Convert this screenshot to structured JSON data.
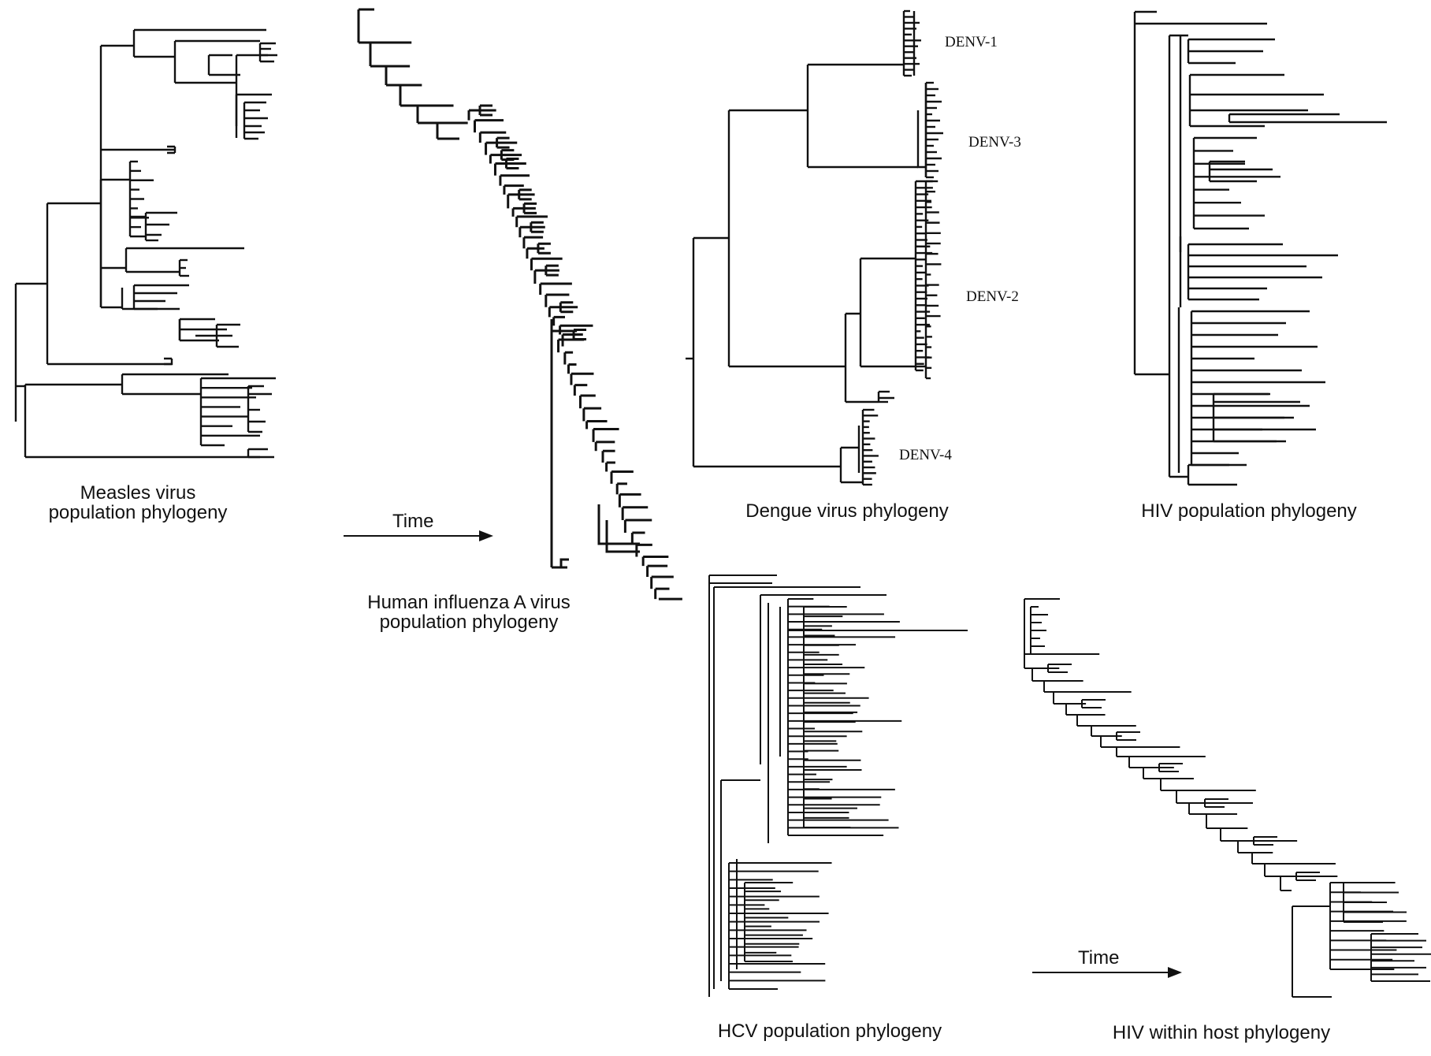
{
  "figure": {
    "colors": {
      "ink": "#111111",
      "background": "#ffffff"
    },
    "panels": {
      "measles": {
        "line1": "Measles virus",
        "line2": "population phylogeny"
      },
      "influenza": {
        "line1": "Human influenza A virus",
        "line2": "population phylogeny"
      },
      "dengue": {
        "line1": "Dengue virus phylogeny"
      },
      "hiv_population": {
        "line1": "HIV population phylogeny"
      },
      "hcv": {
        "line1": "HCV population phylogeny"
      },
      "hiv_within_host": {
        "line1": "HIV within host phylogeny"
      }
    },
    "dengue_clades": [
      "DENV-1",
      "DENV-3",
      "DENV-2",
      "DENV-4"
    ],
    "time_arrows": {
      "label": "Time"
    }
  }
}
